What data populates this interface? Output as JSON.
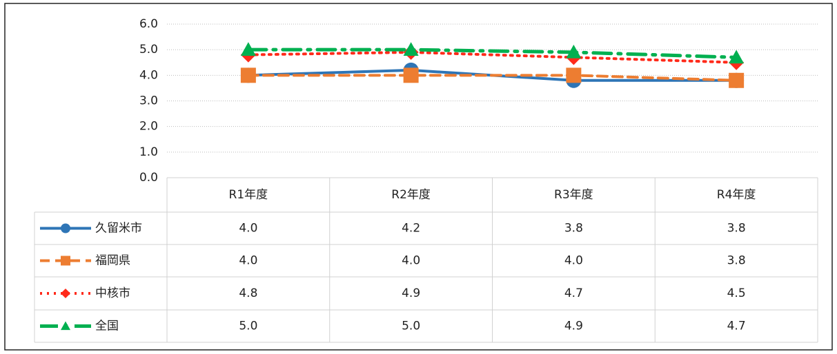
{
  "chart_data": {
    "type": "line",
    "categories": [
      "R1年度",
      "R2年度",
      "R3年度",
      "R4年度"
    ],
    "series": [
      {
        "name": "久留米市",
        "color": "#2e75b6",
        "marker": "circle",
        "dash": "solid",
        "values": [
          4.0,
          4.2,
          3.8,
          3.8
        ],
        "value_labels": [
          "4.0",
          "4.2",
          "3.8",
          "3.8"
        ]
      },
      {
        "name": "福岡県",
        "color": "#ed7d31",
        "marker": "square",
        "dash": "dashed",
        "values": [
          4.0,
          4.0,
          4.0,
          3.8
        ],
        "value_labels": [
          "4.0",
          "4.0",
          "4.0",
          "3.8"
        ]
      },
      {
        "name": "中核市",
        "color": "#ff2a1a",
        "marker": "diamond",
        "dash": "dotted",
        "values": [
          4.8,
          4.9,
          4.7,
          4.5
        ],
        "value_labels": [
          "4.8",
          "4.9",
          "4.7",
          "4.5"
        ]
      },
      {
        "name": "全国",
        "color": "#00b050",
        "marker": "triangle",
        "dash": "dashdot",
        "values": [
          5.0,
          5.0,
          4.9,
          4.7
        ],
        "value_labels": [
          "5.0",
          "5.0",
          "4.9",
          "4.7"
        ]
      }
    ],
    "ylim": [
      0,
      6
    ],
    "yticks": [
      {
        "value": 0,
        "label": "0.0"
      },
      {
        "value": 1,
        "label": "1.0"
      },
      {
        "value": 2,
        "label": "2.0"
      },
      {
        "value": 3,
        "label": "3.0"
      },
      {
        "value": 4,
        "label": "4.0"
      },
      {
        "value": 5,
        "label": "5.0"
      },
      {
        "value": 6,
        "label": "6.0"
      }
    ],
    "grid": true
  }
}
